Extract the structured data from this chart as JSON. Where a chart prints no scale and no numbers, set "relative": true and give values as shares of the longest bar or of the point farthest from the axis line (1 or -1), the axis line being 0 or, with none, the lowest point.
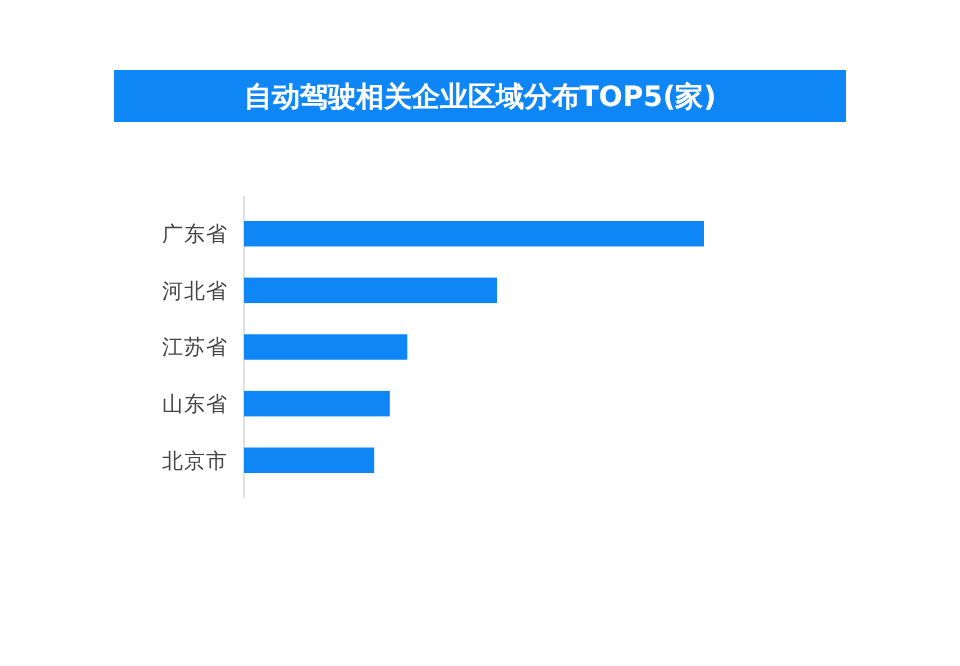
{
  "chart_data": {
    "type": "bar",
    "orientation": "horizontal",
    "relative": true,
    "title": "自动驾驶相关企业区域分布TOP5(家)",
    "categories": [
      "广东省",
      "河北省",
      "江苏省",
      "山东省",
      "北京市"
    ],
    "values": [
      1,
      0.55,
      0.355,
      0.317,
      0.283
    ],
    "color": "#0f86f5"
  }
}
